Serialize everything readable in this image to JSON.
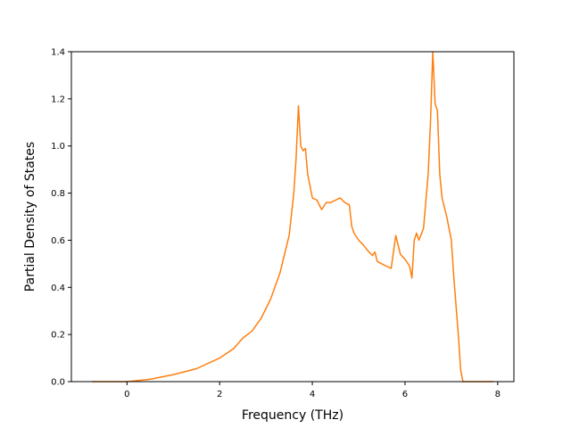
{
  "chart_data": {
    "type": "line",
    "title": "",
    "xlabel": "Frequency (THz)",
    "ylabel": "Partial Density of States",
    "xlim": [
      -1.2,
      8.35
    ],
    "ylim": [
      0,
      1.4
    ],
    "grid": false,
    "x_ticks": [
      0,
      2,
      4,
      6,
      8
    ],
    "y_ticks": [
      0.0,
      0.2,
      0.4,
      0.6,
      0.8,
      1.0,
      1.2,
      1.4
    ],
    "x_tick_labels": [
      "0",
      "2",
      "4",
      "6",
      "8"
    ],
    "y_tick_labels": [
      "0.0",
      "0.2",
      "0.4",
      "0.6",
      "0.8",
      "1.0",
      "1.2",
      "1.4"
    ],
    "series": [
      {
        "color": "#ff7f0e",
        "points": [
          [
            -0.75,
            0.0
          ],
          [
            0.0,
            0.0
          ],
          [
            0.5,
            0.01
          ],
          [
            1.0,
            0.03
          ],
          [
            1.5,
            0.055
          ],
          [
            2.0,
            0.1
          ],
          [
            2.3,
            0.14
          ],
          [
            2.5,
            0.185
          ],
          [
            2.7,
            0.215
          ],
          [
            2.9,
            0.27
          ],
          [
            3.1,
            0.35
          ],
          [
            3.3,
            0.46
          ],
          [
            3.5,
            0.62
          ],
          [
            3.6,
            0.8
          ],
          [
            3.65,
            0.95
          ],
          [
            3.7,
            1.17
          ],
          [
            3.75,
            1.0
          ],
          [
            3.8,
            0.98
          ],
          [
            3.85,
            0.99
          ],
          [
            3.9,
            0.88
          ],
          [
            4.0,
            0.78
          ],
          [
            4.1,
            0.77
          ],
          [
            4.2,
            0.73
          ],
          [
            4.3,
            0.76
          ],
          [
            4.4,
            0.76
          ],
          [
            4.5,
            0.77
          ],
          [
            4.6,
            0.78
          ],
          [
            4.7,
            0.76
          ],
          [
            4.8,
            0.75
          ],
          [
            4.85,
            0.66
          ],
          [
            4.9,
            0.63
          ],
          [
            5.0,
            0.6
          ],
          [
            5.1,
            0.58
          ],
          [
            5.2,
            0.555
          ],
          [
            5.3,
            0.535
          ],
          [
            5.35,
            0.55
          ],
          [
            5.4,
            0.51
          ],
          [
            5.5,
            0.5
          ],
          [
            5.6,
            0.49
          ],
          [
            5.7,
            0.48
          ],
          [
            5.75,
            0.55
          ],
          [
            5.8,
            0.62
          ],
          [
            5.9,
            0.54
          ],
          [
            6.0,
            0.52
          ],
          [
            6.1,
            0.49
          ],
          [
            6.15,
            0.44
          ],
          [
            6.2,
            0.6
          ],
          [
            6.25,
            0.63
          ],
          [
            6.3,
            0.6
          ],
          [
            6.4,
            0.65
          ],
          [
            6.5,
            0.88
          ],
          [
            6.55,
            1.1
          ],
          [
            6.6,
            1.4
          ],
          [
            6.65,
            1.18
          ],
          [
            6.7,
            1.15
          ],
          [
            6.75,
            0.88
          ],
          [
            6.8,
            0.78
          ],
          [
            6.9,
            0.7
          ],
          [
            7.0,
            0.6
          ],
          [
            7.05,
            0.45
          ],
          [
            7.15,
            0.2
          ],
          [
            7.2,
            0.05
          ],
          [
            7.25,
            0.0
          ],
          [
            7.9,
            0.0
          ]
        ]
      }
    ]
  }
}
